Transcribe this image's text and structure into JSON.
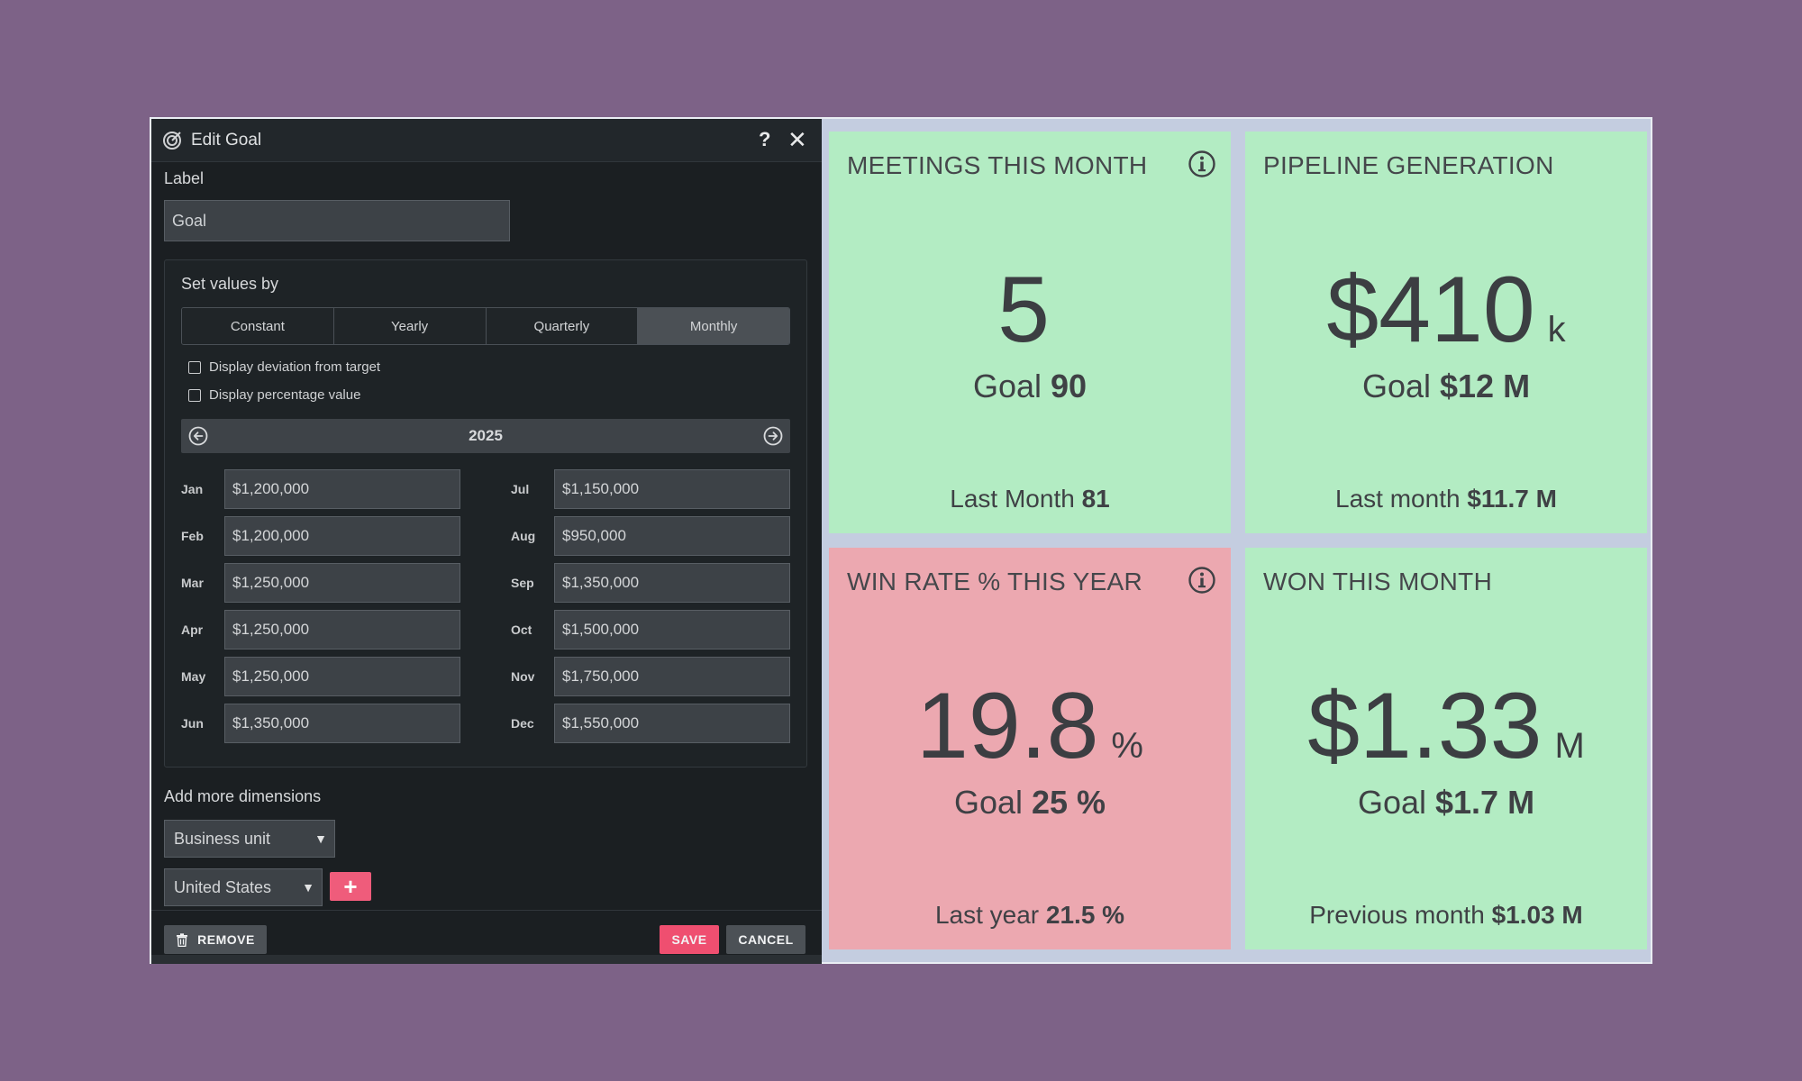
{
  "dialog": {
    "title": "Edit Goal",
    "help_label": "?",
    "close_label": "✕",
    "label_caption": "Label",
    "label_value": "Goal",
    "set_values_caption": "Set values by",
    "modes": [
      "Constant",
      "Yearly",
      "Quarterly",
      "Monthly"
    ],
    "active_mode": "Monthly",
    "checkboxes": {
      "deviation": "Display deviation from target",
      "percentage": "Display percentage value"
    },
    "year": "2025",
    "months": [
      {
        "label": "Jan",
        "value": "$1,200,000"
      },
      {
        "label": "Feb",
        "value": "$1,200,000"
      },
      {
        "label": "Mar",
        "value": "$1,250,000"
      },
      {
        "label": "Apr",
        "value": "$1,250,000"
      },
      {
        "label": "May",
        "value": "$1,250,000"
      },
      {
        "label": "Jun",
        "value": "$1,350,000"
      },
      {
        "label": "Jul",
        "value": "$1,150,000"
      },
      {
        "label": "Aug",
        "value": "$950,000"
      },
      {
        "label": "Sep",
        "value": "$1,350,000"
      },
      {
        "label": "Oct",
        "value": "$1,500,000"
      },
      {
        "label": "Nov",
        "value": "$1,750,000"
      },
      {
        "label": "Dec",
        "value": "$1,550,000"
      }
    ],
    "add_dimensions_caption": "Add more dimensions",
    "dimension_select": "Business unit",
    "dimension_value": "United States",
    "add_label": "+",
    "remove_label": "REMOVE",
    "save_label": "SAVE",
    "cancel_label": "CANCEL"
  },
  "tiles": {
    "meetings": {
      "title": "MEETINGS THIS MONTH",
      "value": "5",
      "unit": "",
      "goal_prefix": "Goal",
      "goal_value": "90",
      "last_prefix": "Last Month",
      "last_value": "81",
      "status": "green"
    },
    "pipeline": {
      "title": "PIPELINE GENERATION",
      "value": "$410",
      "unit": "k",
      "goal_prefix": "Goal",
      "goal_value": "$12 M",
      "last_prefix": "Last month",
      "last_value": "$11.7 M",
      "status": "green"
    },
    "winrate": {
      "title": "WIN RATE % THIS YEAR",
      "value": "19.8",
      "unit": "%",
      "goal_prefix": "Goal",
      "goal_value": "25 %",
      "last_prefix": "Last year",
      "last_value": "21.5 %",
      "status": "red"
    },
    "won": {
      "title": "WON THIS MONTH",
      "value": "$1.33",
      "unit": "M",
      "goal_prefix": "Goal",
      "goal_value": "$1.7 M",
      "last_prefix": "Previous month",
      "last_value": "$1.03 M",
      "status": "green"
    }
  },
  "colors": {
    "background": "#7d6287",
    "tile_green": "#b3ecc3",
    "tile_red": "#eca8b0",
    "accent": "#ef4f70",
    "dialog_bg": "#1b1f22"
  },
  "icons": {
    "dialog": "target-icon",
    "prev": "arrow-left-circle-icon",
    "next": "arrow-right-circle-icon",
    "info": "info-icon",
    "remove": "trash-icon"
  }
}
